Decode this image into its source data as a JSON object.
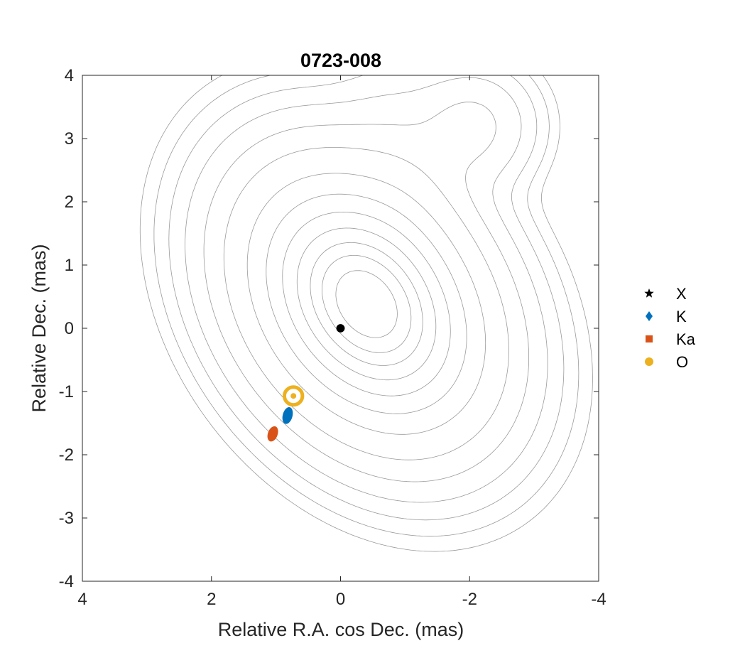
{
  "chart_data": {
    "type": "scatter",
    "title": "0723-008",
    "xlabel": "Relative R.A. cos Dec. (mas)",
    "ylabel": "Relative Dec. (mas)",
    "xlim": [
      4,
      -4
    ],
    "ylim": [
      -4,
      4
    ],
    "x_reversed": true,
    "xticks": [
      4,
      2,
      0,
      -2,
      -4
    ],
    "xtick_labels": [
      "4",
      "2",
      "0",
      "-2",
      "-4"
    ],
    "yticks": [
      4,
      3,
      2,
      1,
      0,
      -1,
      -2,
      -3,
      -4
    ],
    "ytick_labels": [
      "4",
      "3",
      "2",
      "1",
      "0",
      "-1",
      "-2",
      "-3",
      "-4"
    ],
    "grid": false,
    "legend_position": "right",
    "contour_color": "#9a9a9a",
    "series": [
      {
        "name": "X",
        "marker": "star",
        "color": "#000000",
        "x": 0.0,
        "y": 0.0
      },
      {
        "name": "K",
        "marker": "diamond",
        "color": "#0072BD",
        "x": 0.82,
        "y": -1.38
      },
      {
        "name": "Ka",
        "marker": "square",
        "color": "#D95319",
        "x": 1.05,
        "y": -1.67
      },
      {
        "name": "O",
        "marker": "circle",
        "color": "#EDB120",
        "x": 0.73,
        "y": -1.07
      }
    ],
    "error_ellipses": [
      {
        "series": "X",
        "cx": 0.0,
        "cy": 0.0,
        "rx": 0.06,
        "ry": 0.06,
        "angle": 0
      },
      {
        "series": "K",
        "cx": 0.82,
        "cy": -1.38,
        "rx": 0.07,
        "ry": 0.13,
        "angle": 15
      },
      {
        "series": "Ka",
        "cx": 1.05,
        "cy": -1.67,
        "rx": 0.07,
        "ry": 0.12,
        "angle": 20
      },
      {
        "series": "O",
        "cx": 0.73,
        "cy": -1.07,
        "rx": 0.14,
        "ry": 0.14,
        "angle": 0
      }
    ],
    "components": [
      {
        "cx": -0.4,
        "cy": 0.38,
        "sx": 0.9,
        "sy": 1.25,
        "amp": 1.0,
        "angle": 35
      },
      {
        "cx": -2.05,
        "cy": 3.2,
        "sx": 0.55,
        "sy": 0.55,
        "amp": 0.06,
        "angle": 0
      },
      {
        "cx": -1.0,
        "cy": 2.4,
        "sx": 0.55,
        "sy": 1.1,
        "amp": 0.03,
        "angle": 10
      }
    ]
  }
}
